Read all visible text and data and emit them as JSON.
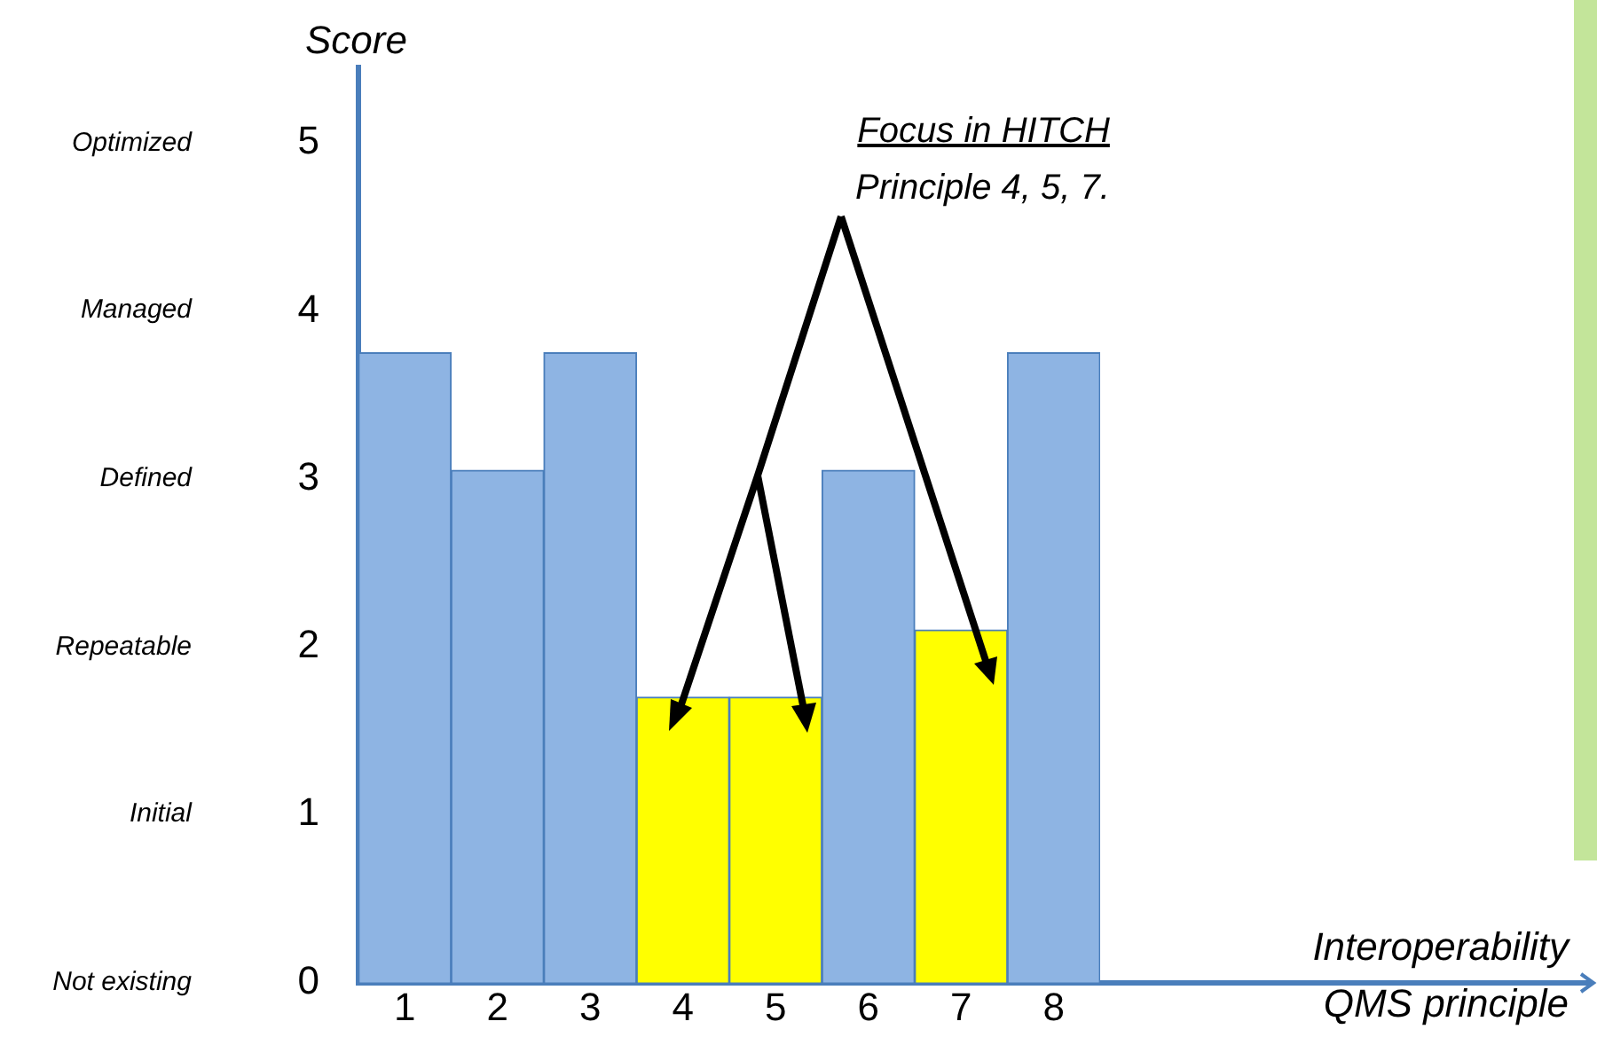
{
  "chart_data": {
    "type": "bar",
    "ylabel": "Score",
    "categories": [
      "1",
      "2",
      "3",
      "4",
      "5",
      "6",
      "7",
      "8"
    ],
    "values": [
      3.75,
      3.05,
      3.75,
      1.7,
      1.7,
      3.05,
      2.1,
      3.75
    ],
    "colors": [
      "#8eb4e3",
      "#8eb4e3",
      "#8eb4e3",
      "#ffff00",
      "#ffff00",
      "#8eb4e3",
      "#ffff00",
      "#8eb4e3"
    ],
    "ylim": [
      0,
      5.45
    ],
    "yticks": [
      0,
      1,
      2,
      3,
      4,
      5
    ],
    "annotations": [
      "Focus in HITCH",
      "Principle 4, 5, 7.",
      "Not existing",
      "Initial",
      "Repeatable",
      "Defined",
      "Managed",
      "Optimized",
      "Interoperability",
      "QMS principle"
    ],
    "grid": false,
    "legend": false
  }
}
